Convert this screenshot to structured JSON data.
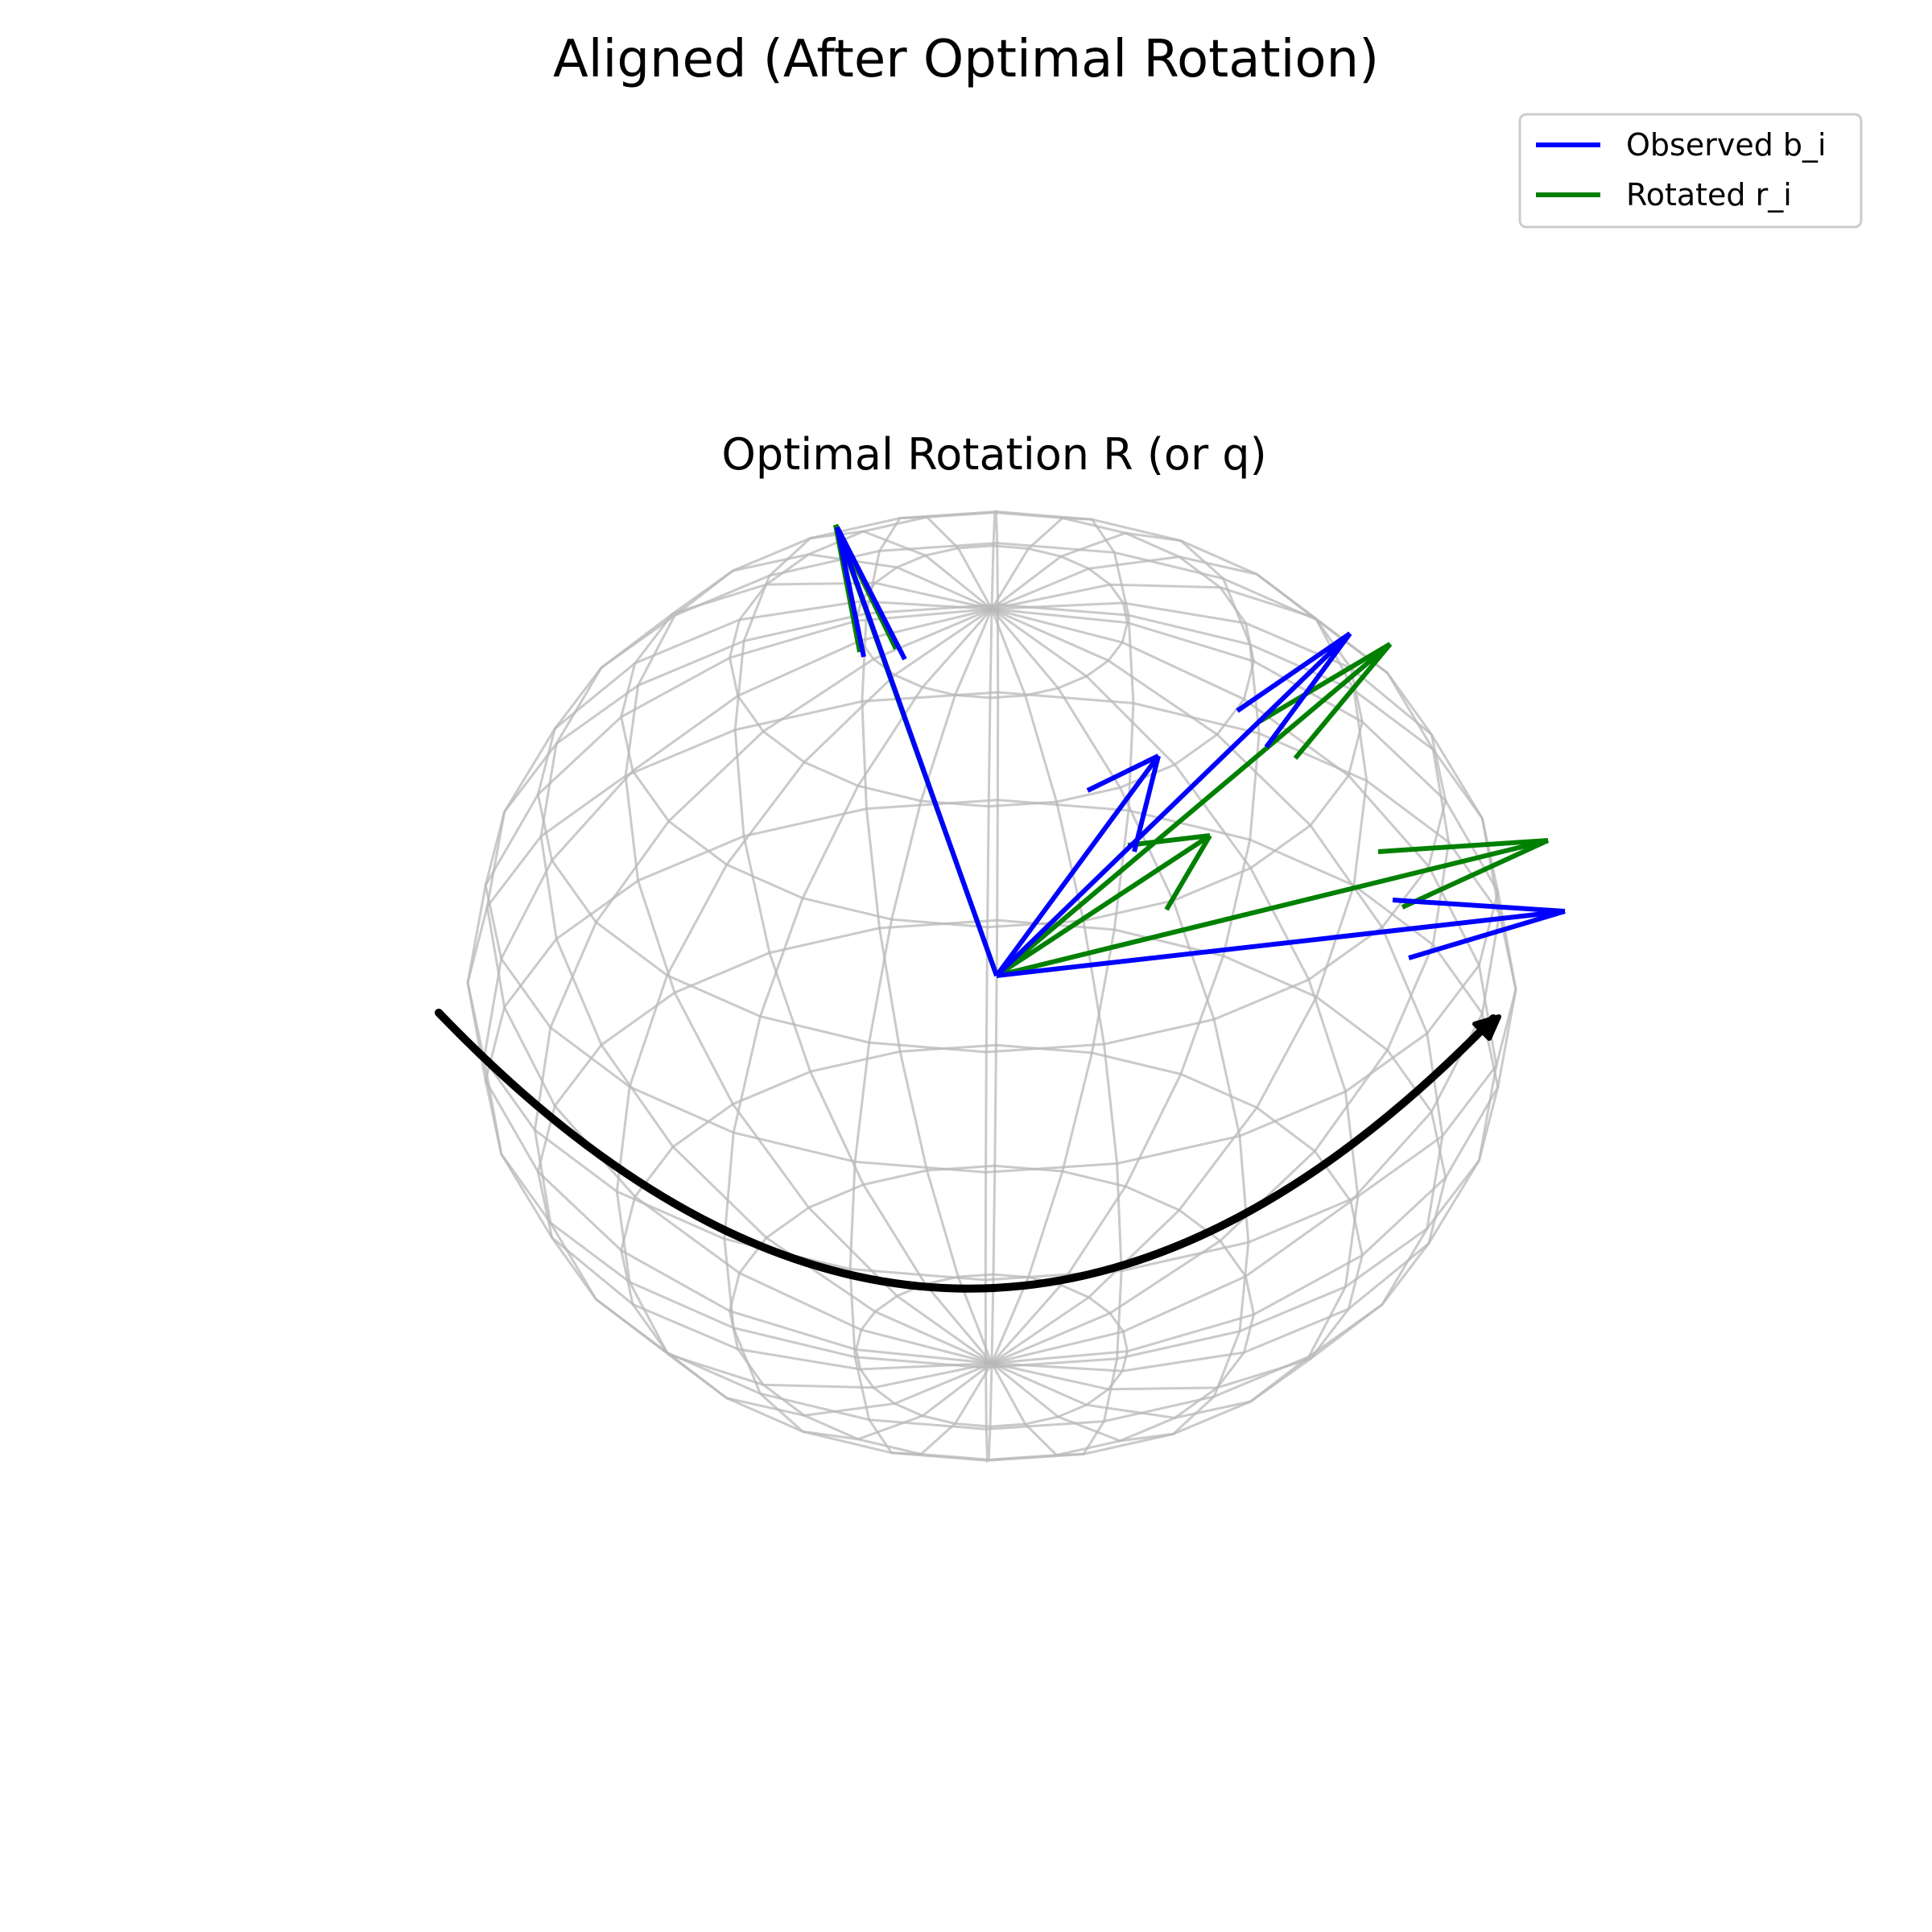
{
  "title": "Aligned (After Optimal Rotation)",
  "subtitle": "Optimal Rotation R (or q)",
  "legend": {
    "items": [
      {
        "label": "Observed b_i",
        "color": "#0000ff"
      },
      {
        "label": "Rotated r_i",
        "color": "#008000"
      }
    ]
  },
  "colors": {
    "observed": "#0000ff",
    "rotated": "#008000",
    "wireframe": "#b8b8b8",
    "rotation_arc": "#000000"
  }
}
